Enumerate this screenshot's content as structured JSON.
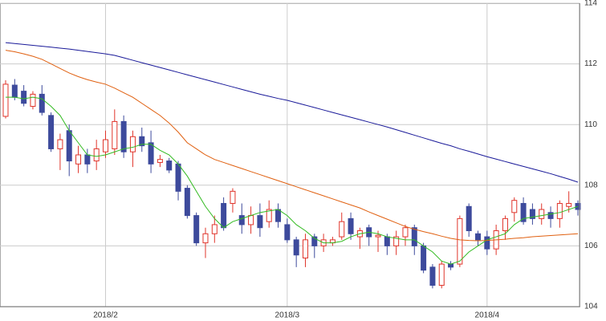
{
  "chart_data": {
    "type": "candlestick",
    "categories": [
      null,
      null,
      null,
      null,
      null,
      null,
      null,
      null,
      null,
      null,
      null,
      "2018/2",
      null,
      null,
      null,
      null,
      null,
      null,
      null,
      null,
      null,
      null,
      null,
      null,
      null,
      null,
      null,
      null,
      null,
      null,
      null,
      "2018/3",
      null,
      null,
      null,
      null,
      null,
      null,
      null,
      null,
      null,
      null,
      null,
      null,
      null,
      null,
      null,
      null,
      null,
      null,
      null,
      null,
      null,
      "2018/4",
      null,
      null,
      null,
      null,
      null,
      null,
      null,
      null,
      null,
      null
    ],
    "candles": {
      "up_color": "#e0352b",
      "down_color": "#3d4a9c",
      "open": [
        110.27,
        111.3,
        111.1,
        110.6,
        111.0,
        110.3,
        109.2,
        109.8,
        108.7,
        109.0,
        108.8,
        109.1,
        109.2,
        110.1,
        109.1,
        109.6,
        109.4,
        108.75,
        108.8,
        108.7,
        107.9,
        107.0,
        106.1,
        106.4,
        107.4,
        107.4,
        107.0,
        106.7,
        107.0,
        106.8,
        107.2,
        106.7,
        106.2,
        105.6,
        106.3,
        106.0,
        106.1,
        106.3,
        106.9,
        106.3,
        106.6,
        106.3,
        106.3,
        106.0,
        106.3,
        106.6,
        106.0,
        105.3,
        104.7,
        105.4,
        105.4,
        107.3,
        106.4,
        106.3,
        105.9,
        106.5,
        107.1,
        107.4,
        107.2,
        106.9,
        107.1,
        106.9,
        107.3,
        107.4
      ],
      "high": [
        111.46,
        111.5,
        111.3,
        111.1,
        111.3,
        110.4,
        109.7,
        110.0,
        109.3,
        109.2,
        109.5,
        109.8,
        110.5,
        110.3,
        109.8,
        109.9,
        109.8,
        109.0,
        108.9,
        108.8,
        108.0,
        107.1,
        106.6,
        107.0,
        107.6,
        107.9,
        107.4,
        107.3,
        107.4,
        107.5,
        107.4,
        106.9,
        106.3,
        106.4,
        106.4,
        106.4,
        106.3,
        107.1,
        107.1,
        106.6,
        106.7,
        106.5,
        106.4,
        106.5,
        106.7,
        106.7,
        106.1,
        105.4,
        105.5,
        105.5,
        107.0,
        107.4,
        106.5,
        106.5,
        106.7,
        107.0,
        107.6,
        107.6,
        107.4,
        107.4,
        107.3,
        107.5,
        107.8,
        107.5
      ],
      "low": [
        110.2,
        110.8,
        110.6,
        110.5,
        110.3,
        109.1,
        108.5,
        108.3,
        108.4,
        108.4,
        108.5,
        108.9,
        109.0,
        108.9,
        108.6,
        109.1,
        108.4,
        108.6,
        108.4,
        107.5,
        106.9,
        106.0,
        105.6,
        106.1,
        106.5,
        107.1,
        106.4,
        106.4,
        106.3,
        106.6,
        106.6,
        106.1,
        105.3,
        105.3,
        105.6,
        105.8,
        106.0,
        106.2,
        106.2,
        105.9,
        106.0,
        105.8,
        105.7,
        105.7,
        106.0,
        105.7,
        105.1,
        104.6,
        104.6,
        105.2,
        105.3,
        106.3,
        106.0,
        105.7,
        105.7,
        106.2,
        106.8,
        106.7,
        106.7,
        106.7,
        106.6,
        106.6,
        107.1,
        107.0
      ],
      "close": [
        111.33,
        110.9,
        110.7,
        111.0,
        110.4,
        109.2,
        109.5,
        108.8,
        109.0,
        108.7,
        109.2,
        109.5,
        110.1,
        109.1,
        109.6,
        109.3,
        108.7,
        108.85,
        108.5,
        107.8,
        107.0,
        106.1,
        106.4,
        106.7,
        106.6,
        107.8,
        106.7,
        107.0,
        106.6,
        107.2,
        106.8,
        106.2,
        105.7,
        106.2,
        106.0,
        106.2,
        106.2,
        106.8,
        106.4,
        106.5,
        106.3,
        106.35,
        106.0,
        106.3,
        106.6,
        106.0,
        105.2,
        104.7,
        105.4,
        105.3,
        106.9,
        106.5,
        106.2,
        105.9,
        106.5,
        106.9,
        107.5,
        106.8,
        106.9,
        107.2,
        106.9,
        107.4,
        107.4,
        107.2
      ]
    },
    "lines": [
      {
        "color": "#33bb22",
        "values": [
          110.9,
          110.9,
          110.85,
          110.9,
          110.85,
          110.6,
          110.3,
          109.8,
          109.4,
          109.0,
          108.95,
          109.0,
          109.1,
          109.2,
          109.25,
          109.35,
          109.35,
          109.15,
          109.0,
          108.7,
          108.3,
          107.8,
          107.3,
          106.9,
          106.6,
          106.8,
          106.9,
          107.0,
          107.1,
          107.15,
          107.2,
          107.0,
          106.7,
          106.5,
          106.25,
          106.1,
          106.1,
          106.15,
          106.3,
          106.4,
          106.45,
          106.4,
          106.3,
          106.25,
          106.2,
          106.2,
          106.0,
          105.8,
          105.5,
          105.4,
          105.5,
          105.8,
          106.0,
          106.2,
          106.3,
          106.4,
          106.7,
          106.9,
          106.95,
          107.0,
          107.05,
          107.1,
          107.2,
          107.3
        ]
      },
      {
        "color": "#e06010",
        "values": [
          112.45,
          112.4,
          112.33,
          112.25,
          112.15,
          112.0,
          111.85,
          111.7,
          111.58,
          111.48,
          111.4,
          111.33,
          111.2,
          111.05,
          110.9,
          110.7,
          110.5,
          110.3,
          110.05,
          109.75,
          109.4,
          109.2,
          109.0,
          108.85,
          108.75,
          108.65,
          108.55,
          108.45,
          108.35,
          108.25,
          108.15,
          108.05,
          107.95,
          107.85,
          107.75,
          107.65,
          107.55,
          107.45,
          107.35,
          107.25,
          107.12,
          107.0,
          106.88,
          106.76,
          106.64,
          106.55,
          106.47,
          106.4,
          106.32,
          106.25,
          106.2,
          106.18,
          106.17,
          106.18,
          106.2,
          106.22,
          106.25,
          106.27,
          106.3,
          106.32,
          106.34,
          106.36,
          106.38,
          106.4
        ]
      },
      {
        "color": "#1a1a99",
        "values": [
          112.7,
          112.67,
          112.64,
          112.61,
          112.58,
          112.55,
          112.52,
          112.49,
          112.45,
          112.41,
          112.37,
          112.33,
          112.28,
          112.2,
          112.12,
          112.04,
          111.96,
          111.88,
          111.8,
          111.72,
          111.64,
          111.56,
          111.48,
          111.4,
          111.32,
          111.24,
          111.16,
          111.08,
          111.0,
          110.93,
          110.86,
          110.8,
          110.72,
          110.64,
          110.56,
          110.48,
          110.4,
          110.32,
          110.24,
          110.16,
          110.08,
          110.0,
          109.92,
          109.83,
          109.74,
          109.65,
          109.56,
          109.47,
          109.38,
          109.3,
          109.2,
          109.12,
          109.03,
          108.94,
          108.86,
          108.78,
          108.7,
          108.62,
          108.54,
          108.46,
          108.38,
          108.29,
          108.2,
          108.1
        ]
      }
    ],
    "ylim": [
      104,
      114
    ],
    "yticks": [
      104,
      106,
      108,
      110,
      112,
      114
    ],
    "grid": true
  }
}
